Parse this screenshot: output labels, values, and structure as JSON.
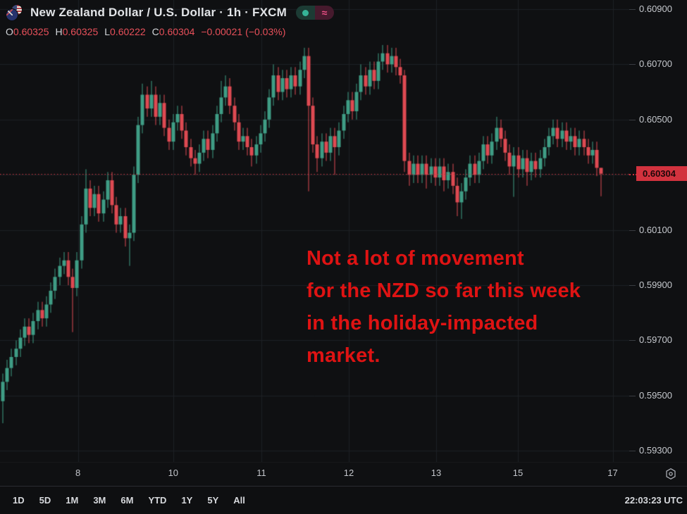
{
  "header": {
    "title": "New Zealand Dollar / U.S. Dollar · 1h · FXCM",
    "flags_icon": "nzd-usd-flags",
    "status": {
      "dot_icon": "market-status-dot",
      "approx_glyph": "≈"
    }
  },
  "ohlc_row": {
    "o_label": "O",
    "o_value": "0.60325",
    "h_label": "H",
    "h_value": "0.60325",
    "l_label": "L",
    "l_value": "0.60222",
    "c_label": "C",
    "c_value": "0.60304",
    "change": "−0.00021",
    "change_pct": "(−0.03%)",
    "value_color": "#e8505a"
  },
  "annotation": {
    "lines": [
      "Not a lot of movement",
      "for the NZD so far this week",
      "in the holiday-impacted",
      "market."
    ],
    "color": "#df1313"
  },
  "price_axis": {
    "labels": [
      {
        "text": "0.60900",
        "value": 0.609
      },
      {
        "text": "0.60700",
        "value": 0.607
      },
      {
        "text": "0.60500",
        "value": 0.605
      },
      {
        "text": "0.60100",
        "value": 0.601
      },
      {
        "text": "0.59900",
        "value": 0.599
      },
      {
        "text": "0.59700",
        "value": 0.597
      },
      {
        "text": "0.59500",
        "value": 0.595
      },
      {
        "text": "0.59300",
        "value": 0.593
      }
    ],
    "last_price": {
      "text": "0.60304",
      "value": 0.60304,
      "bg": "#d2323e",
      "fg": "#1d0709"
    }
  },
  "time_axis": {
    "labels": [
      {
        "text": "8",
        "index": 17.2
      },
      {
        "text": "10",
        "index": 39
      },
      {
        "text": "11",
        "index": 59.2
      },
      {
        "text": "12",
        "index": 79.2
      },
      {
        "text": "13",
        "index": 99.2
      },
      {
        "text": "15",
        "index": 117.9
      },
      {
        "text": "17",
        "index": 139.6
      }
    ],
    "settings_icon": "gear-icon"
  },
  "toolbar": {
    "ranges": [
      "1D",
      "5D",
      "1M",
      "3M",
      "6M",
      "YTD",
      "1Y",
      "5Y",
      "All"
    ],
    "clock": "22:03:23 UTC"
  },
  "chart_data": {
    "type": "candlestick",
    "symbol": "NZD/USD",
    "interval": "1h",
    "source": "FXCM",
    "up_color": "#3f9d85",
    "down_color": "#de4a52",
    "grid_color": "#1e2126",
    "grid_prices": [
      0.609,
      0.607,
      0.605,
      0.603,
      0.601,
      0.599,
      0.597,
      0.595,
      0.593
    ],
    "ylim": [
      0.5926,
      0.60933
    ],
    "current_price": 0.60304,
    "current_price_line_color": "#d2323e",
    "first_open": 0.5948,
    "default_wick": 0.0003,
    "closes": [
      0.5955,
      0.596,
      0.5964,
      0.5967,
      0.5971,
      0.5975,
      0.5972,
      0.5977,
      0.5981,
      0.5978,
      0.5983,
      0.5988,
      0.5993,
      0.5997,
      0.5999,
      0.5993,
      0.5989,
      0.5999,
      0.6012,
      0.6025,
      0.6018,
      0.6023,
      0.6016,
      0.6021,
      0.6028,
      0.6019,
      0.6012,
      0.6015,
      0.6007,
      0.6009,
      0.603,
      0.6048,
      0.6059,
      0.6054,
      0.6059,
      0.6051,
      0.6056,
      0.6047,
      0.6042,
      0.6049,
      0.6052,
      0.6046,
      0.604,
      0.6036,
      0.6034,
      0.6038,
      0.6043,
      0.6039,
      0.6045,
      0.6052,
      0.6058,
      0.6062,
      0.6055,
      0.6049,
      0.6042,
      0.6044,
      0.604,
      0.6037,
      0.6041,
      0.6045,
      0.605,
      0.6058,
      0.6066,
      0.606,
      0.6065,
      0.6061,
      0.6066,
      0.6062,
      0.6068,
      0.6073,
      0.6055,
      0.6041,
      0.6036,
      0.6042,
      0.6038,
      0.6044,
      0.604,
      0.6046,
      0.6052,
      0.6057,
      0.6053,
      0.606,
      0.6066,
      0.6062,
      0.6068,
      0.6064,
      0.6071,
      0.6074,
      0.607,
      0.6073,
      0.6069,
      0.6066,
      0.6035,
      0.603,
      0.6034,
      0.603,
      0.6034,
      0.603,
      0.6033,
      0.6029,
      0.6033,
      0.6028,
      0.6031,
      0.6026,
      0.602,
      0.6024,
      0.6029,
      0.6034,
      0.603,
      0.6035,
      0.6041,
      0.6037,
      0.6042,
      0.6047,
      0.6043,
      0.6038,
      0.6033,
      0.6037,
      0.6032,
      0.6036,
      0.6031,
      0.6035,
      0.6032,
      0.6036,
      0.604,
      0.6044,
      0.6047,
      0.6043,
      0.6046,
      0.6042,
      0.6044,
      0.604,
      0.6043,
      0.604,
      0.6037,
      0.6039,
      0.60325,
      0.60304
    ],
    "high_overrides": {
      "19": 0.6032,
      "24": 0.6031,
      "32": 0.6063,
      "34": 0.6064,
      "50": 0.6064,
      "51": 0.6066,
      "62": 0.607,
      "69": 0.6076,
      "82": 0.607,
      "87": 0.6077,
      "92": 0.6068,
      "113": 0.6051,
      "126": 0.605,
      "137": 0.60325
    },
    "low_overrides": {
      "0": 0.594,
      "16": 0.5973,
      "28": 0.6004,
      "29": 0.5997,
      "44": 0.603,
      "57": 0.6033,
      "70": 0.6024,
      "72": 0.6031,
      "76": 0.603,
      "92": 0.6031,
      "93": 0.6026,
      "97": 0.6025,
      "101": 0.6024,
      "104": 0.6015,
      "105": 0.6014,
      "117": 0.6022,
      "120": 0.6026,
      "137": 0.60222
    }
  }
}
